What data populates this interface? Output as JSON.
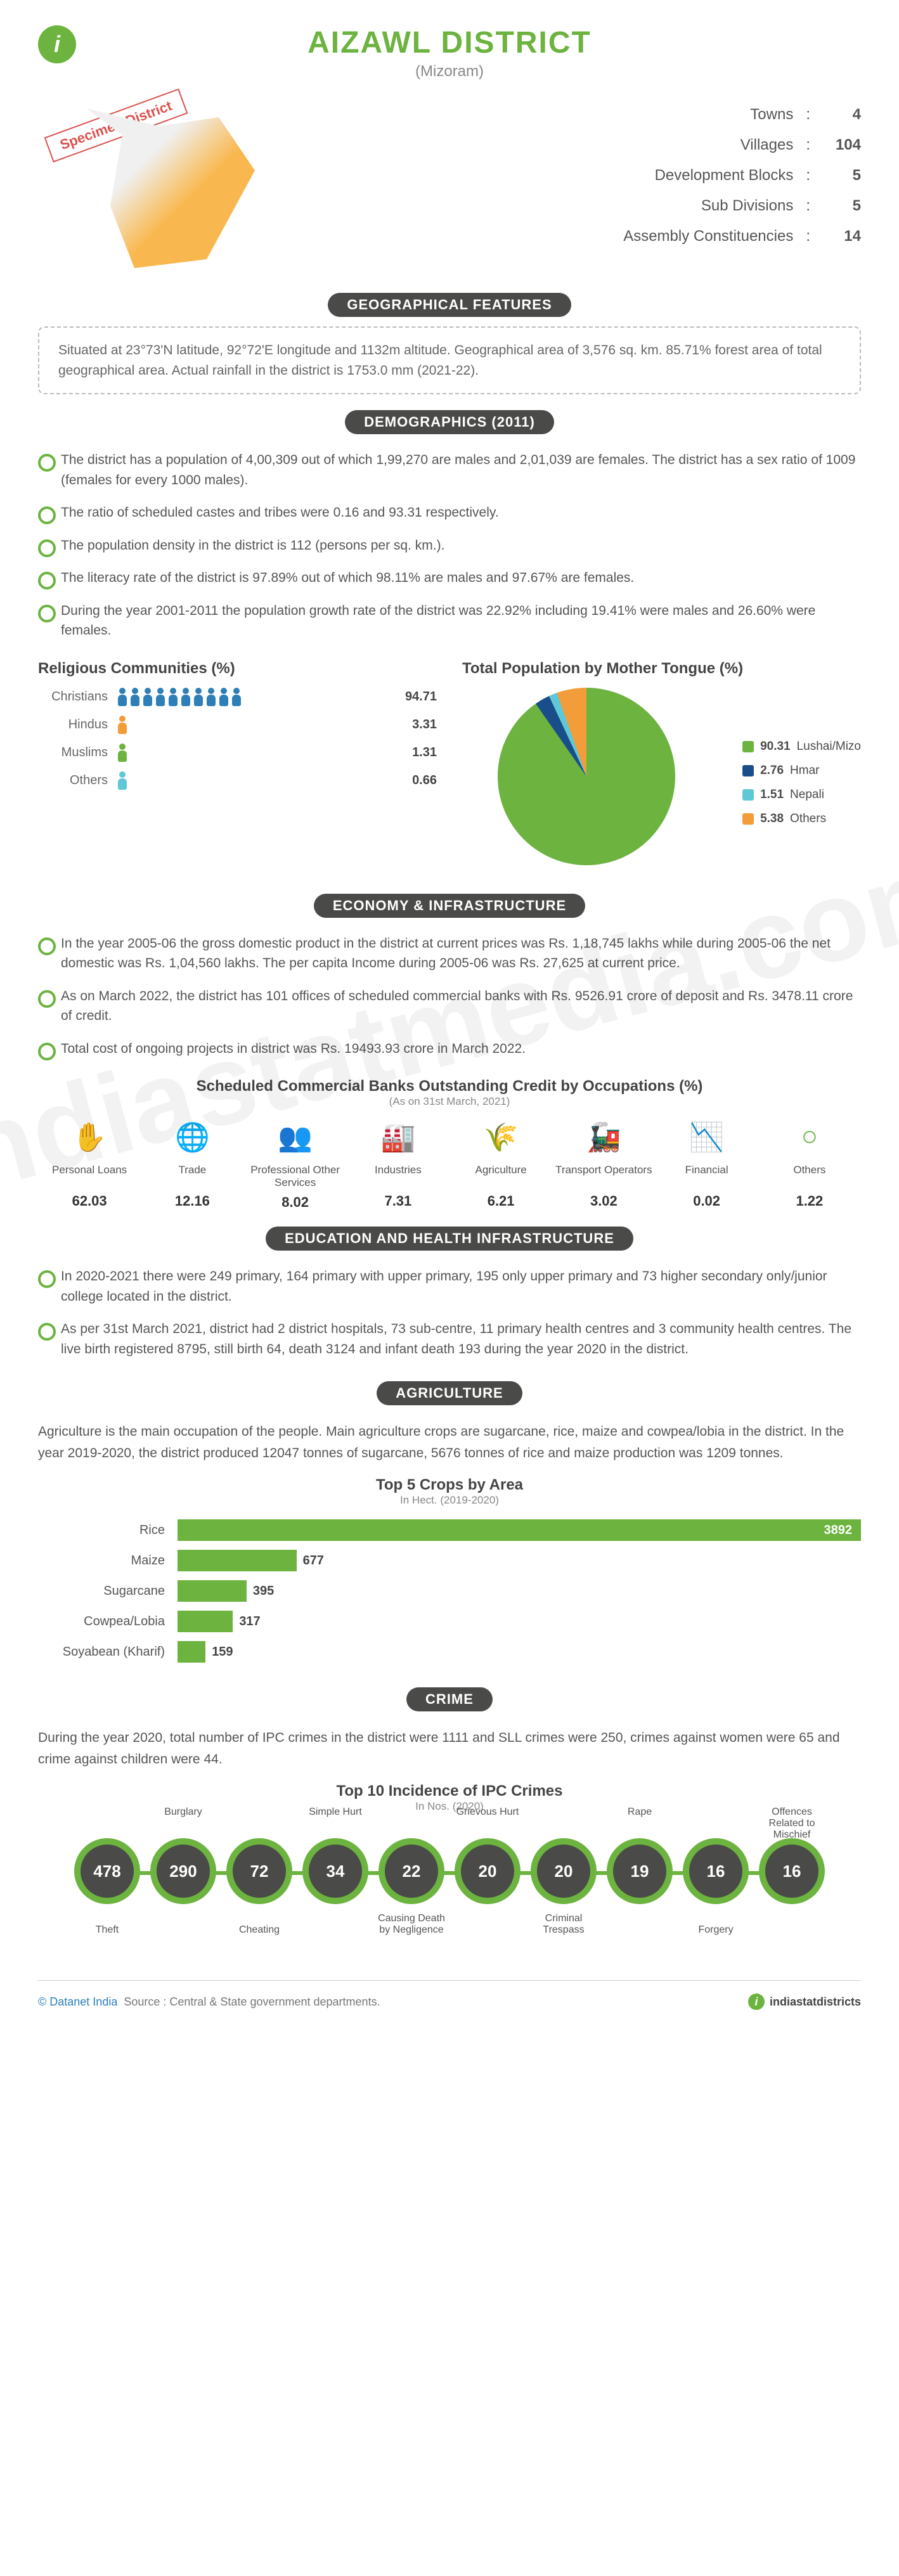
{
  "colors": {
    "accent": "#6cb33f",
    "dark": "#4a4a48",
    "orange": "#f39c3a",
    "blue": "#2e7fb8",
    "navy": "#1a4e8a",
    "cyan": "#5fc8d6",
    "red": "#d9534f",
    "text": "#555555"
  },
  "header": {
    "title": "AIZAWL DISTRICT",
    "subtitle": "(Mizoram)",
    "specimen": "Specimen District"
  },
  "quick_stats": [
    {
      "label": "Towns",
      "value": "4"
    },
    {
      "label": "Villages",
      "value": "104"
    },
    {
      "label": "Development Blocks",
      "value": "5"
    },
    {
      "label": "Sub Divisions",
      "value": "5"
    },
    {
      "label": "Assembly Constituencies",
      "value": "14"
    }
  ],
  "sections": {
    "geo": {
      "title": "GEOGRAPHICAL FEATURES",
      "text": "Situated at 23°73'N latitude, 92°72'E longitude and 1132m altitude. Geographical area of 3,576 sq. km. 85.71% forest area of total geographical area. Actual rainfall in the district is 1753.0 mm (2021-22)."
    },
    "demo": {
      "title": "DEMOGRAPHICS (2011)",
      "bullets": [
        "The district has a population of 4,00,309 out of which 1,99,270 are males and 2,01,039 are females. The district has a sex ratio of 1009 (females for every 1000 males).",
        "The ratio of scheduled castes and tribes were 0.16 and 93.31 respectively.",
        "The population density in the district is 112 (persons per sq. km.).",
        "The literacy rate of the district is 97.89% out of which 98.11% are males and 97.67% are females.",
        "During the year 2001-2011 the population growth rate of the district was 22.92% including 19.41% were males and 26.60% were females."
      ],
      "religion_title": "Religious Communities (%)",
      "religions": [
        {
          "label": "Christians",
          "value": "94.71",
          "icons": 10,
          "cls": "pc-blue"
        },
        {
          "label": "Hindus",
          "value": "3.31",
          "icons": 1,
          "cls": "pc-orange"
        },
        {
          "label": "Muslims",
          "value": "1.31",
          "icons": 1,
          "cls": "pc-green"
        },
        {
          "label": "Others",
          "value": "0.66",
          "icons": 1,
          "cls": "pc-cyan"
        }
      ],
      "tongue_title": "Total Population by Mother Tongue (%)",
      "pie": {
        "slices": [
          {
            "color": "#6cb33f",
            "pct": 90.31
          },
          {
            "color": "#1a4e8a",
            "pct": 2.76
          },
          {
            "color": "#5fc8d6",
            "pct": 1.51
          },
          {
            "color": "#f39c3a",
            "pct": 5.38
          }
        ],
        "legend": [
          {
            "value": "90.31",
            "label": "Lushai/Mizo",
            "color": "#6cb33f"
          },
          {
            "value": "2.76",
            "label": "Hmar",
            "color": "#1a4e8a"
          },
          {
            "value": "1.51",
            "label": "Nepali",
            "color": "#5fc8d6"
          },
          {
            "value": "5.38",
            "label": "Others",
            "color": "#f39c3a"
          }
        ]
      }
    },
    "econ": {
      "title": "ECONOMY & INFRASTRUCTURE",
      "bullets": [
        "In the year 2005-06 the gross domestic product in the district at current prices was Rs. 1,18,745 lakhs while during 2005-06 the net domestic was Rs. 1,04,560 lakhs. The per capita Income during 2005-06 was Rs. 27,625 at current price.",
        "As on March 2022, the district has 101 offices of scheduled commercial banks with Rs. 9526.91 crore of deposit and Rs. 3478.11 crore of credit.",
        "Total cost of ongoing projects in district was Rs. 19493.93 crore in March 2022."
      ],
      "credit_title": "Scheduled Commercial Banks Outstanding Credit by Occupations (%)",
      "credit_note": "(As on 31st March, 2021)",
      "credit": [
        {
          "icon": "✋",
          "label": "Personal Loans",
          "value": "62.03"
        },
        {
          "icon": "🌐",
          "label": "Trade",
          "value": "12.16"
        },
        {
          "icon": "👥",
          "label": "Professional Other Services",
          "value": "8.02"
        },
        {
          "icon": "🏭",
          "label": "Industries",
          "value": "7.31"
        },
        {
          "icon": "🌾",
          "label": "Agriculture",
          "value": "6.21"
        },
        {
          "icon": "🚂",
          "label": "Transport Operators",
          "value": "3.02"
        },
        {
          "icon": "📉",
          "label": "Financial",
          "value": "0.02"
        },
        {
          "icon": "○",
          "label": "Others",
          "value": "1.22"
        }
      ]
    },
    "edu": {
      "title": "EDUCATION AND HEALTH INFRASTRUCTURE",
      "bullets": [
        "In 2020-2021 there were 249 primary, 164 primary with upper primary, 195 only upper primary and 73 higher secondary only/junior college located in the district.",
        "As per 31st March 2021, district had 2 district hospitals, 73 sub-centre, 11 primary health centres and 3 community health centres. The live birth registered 8795, still birth 64, death 3124 and infant death 193 during the year 2020 in the district."
      ]
    },
    "agri": {
      "title": "AGRICULTURE",
      "text": "Agriculture is the main occupation of the people. Main agriculture crops are sugarcane, rice, maize and cowpea/lobia in the district. In the year 2019-2020, the district produced 12047 tonnes of sugarcane, 5676 tonnes of rice and maize production was 1209 tonnes.",
      "chart_title": "Top 5 Crops by Area",
      "chart_note": "In Hect. (2019-2020)",
      "max": 3892,
      "bars": [
        {
          "label": "Rice",
          "value": 3892
        },
        {
          "label": "Maize",
          "value": 677
        },
        {
          "label": "Sugarcane",
          "value": 395
        },
        {
          "label": "Cowpea/Lobia",
          "value": 317
        },
        {
          "label": "Soyabean (Kharif)",
          "value": 159
        }
      ]
    },
    "crime": {
      "title": "CRIME",
      "text": "During the year 2020, total number of IPC crimes in the district were 1111 and SLL crimes were 250, crimes against women were 65 and crime against children were 44.",
      "chart_title": "Top 10 Incidence of IPC Crimes",
      "chart_note": "In Nos. (2020)",
      "nodes": [
        {
          "top": "",
          "bot": "Theft",
          "value": "478"
        },
        {
          "top": "Burglary",
          "bot": "",
          "value": "290"
        },
        {
          "top": "",
          "bot": "Cheating",
          "value": "72"
        },
        {
          "top": "Simple Hurt",
          "bot": "",
          "value": "34"
        },
        {
          "top": "",
          "bot": "Causing Death by Negligence",
          "value": "22"
        },
        {
          "top": "Grievous Hurt",
          "bot": "",
          "value": "20"
        },
        {
          "top": "",
          "bot": "Criminal Trespass",
          "value": "20"
        },
        {
          "top": "Rape",
          "bot": "",
          "value": "19"
        },
        {
          "top": "",
          "bot": "Forgery",
          "value": "16"
        },
        {
          "top": "Offences Related to Mischief",
          "bot": "",
          "value": "16"
        }
      ]
    }
  },
  "footer": {
    "source_label": "© Datanet India",
    "source_text": "Source : Central & State government departments.",
    "brand": "indiastatdistricts"
  },
  "watermark": "indiastatmedia.com"
}
